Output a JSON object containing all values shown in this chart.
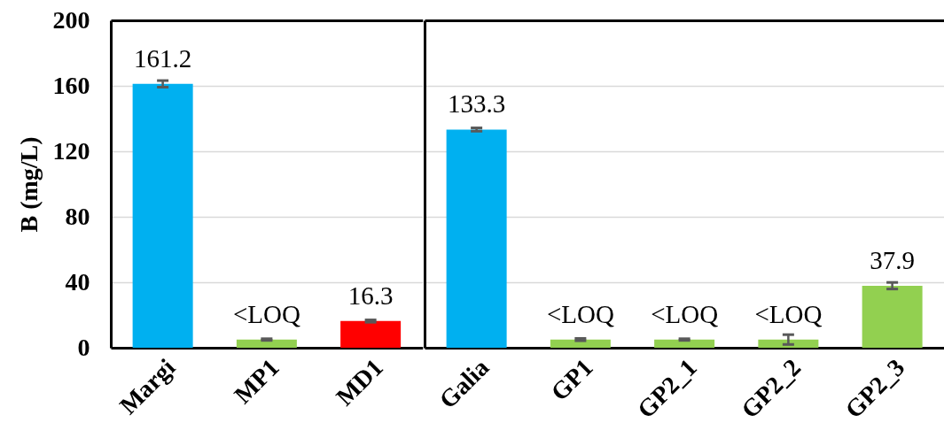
{
  "chart_data": [
    {
      "type": "bar",
      "ylabel": "B (mg/L)",
      "categories": [
        "Margi",
        "MP1",
        "MD1"
      ],
      "values": [
        161.2,
        5,
        16.3
      ],
      "colors": [
        "#00b0f0",
        "#92d050",
        "#ff0000"
      ],
      "errors": [
        2,
        0.5,
        0.7
      ],
      "value_labels": [
        "161.2",
        "<LOQ",
        "16.3"
      ],
      "ylim": [
        0,
        200
      ],
      "yticks": [
        0,
        40,
        80,
        120,
        160,
        200
      ],
      "grid": "y"
    },
    {
      "type": "bar",
      "categories": [
        "Galia",
        "GP1",
        "GP2_1",
        "GP2_2",
        "GP2_3"
      ],
      "values": [
        133.3,
        5,
        5,
        5,
        37.9
      ],
      "colors": [
        "#00b0f0",
        "#92d050",
        "#92d050",
        "#92d050",
        "#92d050"
      ],
      "errors": [
        1,
        0.7,
        0.5,
        3,
        2
      ],
      "value_labels": [
        "133.3",
        "<LOQ",
        "<LOQ",
        "<LOQ",
        "37.9"
      ],
      "ylim": [
        0,
        200
      ],
      "yticks": [
        0,
        40,
        80,
        120,
        160,
        200
      ],
      "grid": "y",
      "tick_labels": "x"
    }
  ]
}
